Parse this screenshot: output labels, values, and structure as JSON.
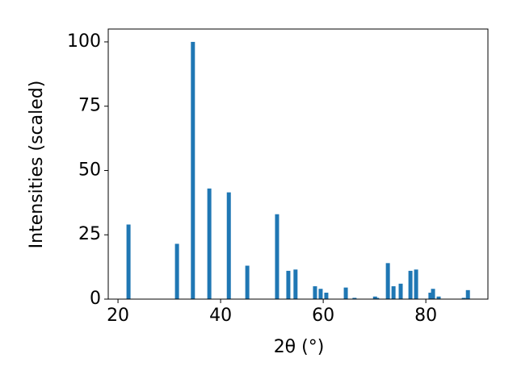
{
  "chart_data": {
    "type": "bar",
    "xlabel": "2θ (°)",
    "ylabel": "Intensities (scaled)",
    "x": [
      22.05,
      31.5,
      34.6,
      37.8,
      41.6,
      45.2,
      51.0,
      53.2,
      54.6,
      58.4,
      59.5,
      60.6,
      64.4,
      66.1,
      70.1,
      70.5,
      72.6,
      73.7,
      75.1,
      77.0,
      78.1,
      80.9,
      81.4,
      82.5,
      87.4,
      88.2
    ],
    "values": [
      29,
      21.5,
      100,
      43,
      41.5,
      13,
      33,
      11,
      11.5,
      5,
      4,
      2.5,
      4.5,
      0.5,
      1,
      0.5,
      14,
      5,
      6,
      11,
      11.5,
      2.5,
      4,
      1,
      0.5,
      3.5
    ],
    "color": "#1f77b4",
    "xlim": [
      18.1,
      92.1
    ],
    "xticks": [
      20,
      40,
      60,
      80
    ],
    "ylim": [
      0,
      105
    ],
    "yticks": [
      0,
      25,
      50,
      75,
      100
    ]
  }
}
